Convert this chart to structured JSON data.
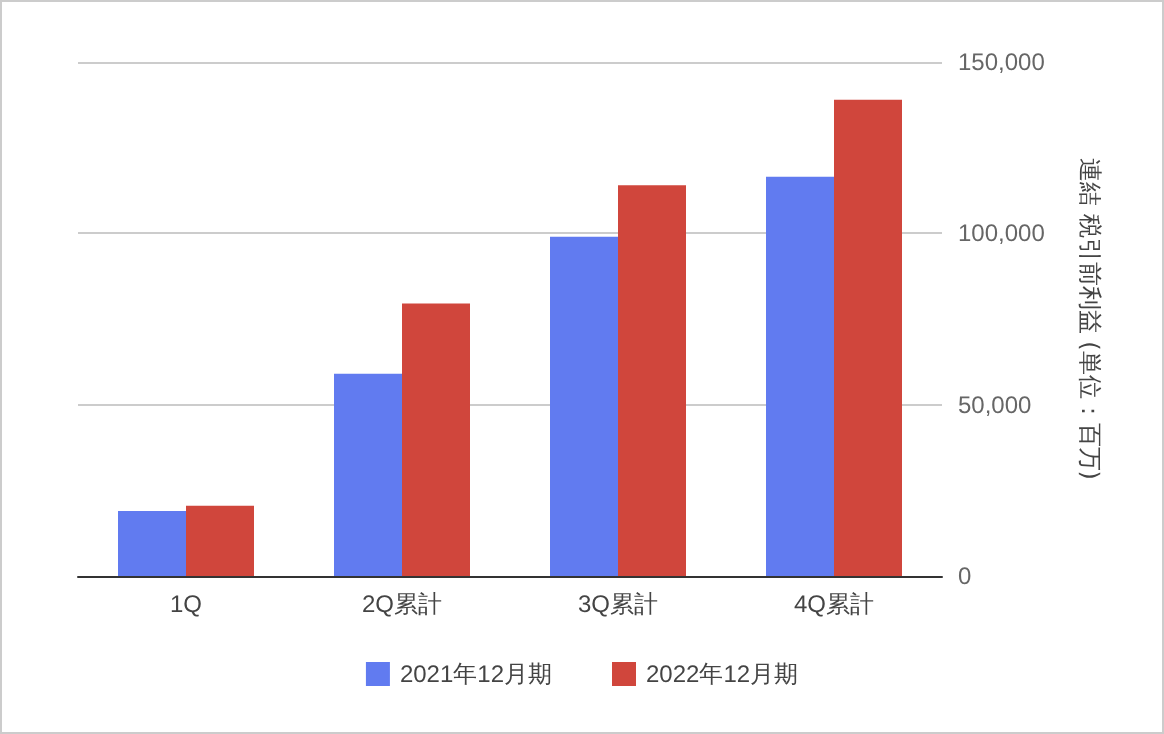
{
  "chart_data": {
    "type": "bar",
    "categories": [
      "1Q",
      "2Q累計",
      "3Q累計",
      "4Q累計"
    ],
    "series": [
      {
        "name": "2021年12月期",
        "color": "#617bf0",
        "values": [
          19000,
          59000,
          99000,
          116500
        ]
      },
      {
        "name": "2022年12月期",
        "color": "#d0463c",
        "values": [
          20500,
          79500,
          114000,
          139000
        ]
      }
    ],
    "ylabel": "連結 税引前利益 (単位：百万)",
    "ylim": [
      0,
      150000
    ],
    "yticks": [
      0,
      {
        "value": 50000,
        "label": "50,000"
      },
      {
        "value": 100000,
        "label": "100,000"
      },
      {
        "value": 150000,
        "label": "150,000"
      }
    ],
    "grid": "y",
    "legend": "bottom"
  }
}
